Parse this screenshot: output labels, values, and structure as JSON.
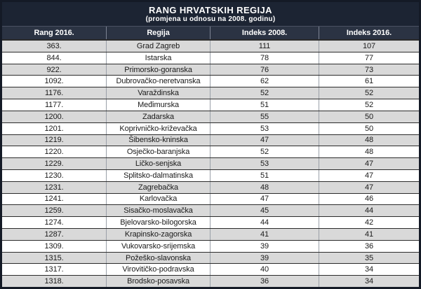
{
  "header": {
    "title": "RANG HRVATSKIH REGIJA",
    "subtitle": "(promjena u odnosu na 2008. godinu)"
  },
  "table": {
    "columns": [
      "Rang 2016.",
      "Regija",
      "Indeks 2008.",
      "Indeks 2016."
    ],
    "rows": [
      {
        "rank": "363.",
        "region": "Grad Zagreb",
        "indeks_2008": "111",
        "indeks_2016": "107"
      },
      {
        "rank": "844.",
        "region": "Istarska",
        "indeks_2008": "78",
        "indeks_2016": "77"
      },
      {
        "rank": "922.",
        "region": "Primorsko-goranska",
        "indeks_2008": "76",
        "indeks_2016": "73"
      },
      {
        "rank": "1092.",
        "region": "Dubrovačko-neretvanska",
        "indeks_2008": "62",
        "indeks_2016": "61"
      },
      {
        "rank": "1176.",
        "region": "Varaždinska",
        "indeks_2008": "52",
        "indeks_2016": "52"
      },
      {
        "rank": "1177.",
        "region": "Međimurska",
        "indeks_2008": "51",
        "indeks_2016": "52"
      },
      {
        "rank": "1200.",
        "region": "Zadarska",
        "indeks_2008": "55",
        "indeks_2016": "50"
      },
      {
        "rank": "1201.",
        "region": "Koprivničko-križevačka",
        "indeks_2008": "53",
        "indeks_2016": "50"
      },
      {
        "rank": "1219.",
        "region": "Šibensko-kninska",
        "indeks_2008": "47",
        "indeks_2016": "48"
      },
      {
        "rank": "1220.",
        "region": "Osječko-baranjska",
        "indeks_2008": "52",
        "indeks_2016": "48"
      },
      {
        "rank": "1229.",
        "region": "Ličko-senjska",
        "indeks_2008": "53",
        "indeks_2016": "47"
      },
      {
        "rank": "1230.",
        "region": "Splitsko-dalmatinska",
        "indeks_2008": "51",
        "indeks_2016": "47"
      },
      {
        "rank": "1231.",
        "region": "Zagrebačka",
        "indeks_2008": "48",
        "indeks_2016": "47"
      },
      {
        "rank": "1241.",
        "region": "Karlovačka",
        "indeks_2008": "47",
        "indeks_2016": "46"
      },
      {
        "rank": "1259.",
        "region": "Sisačko-moslavačka",
        "indeks_2008": "45",
        "indeks_2016": "44"
      },
      {
        "rank": "1274.",
        "region": "Bjelovarsko-bilogorska",
        "indeks_2008": "44",
        "indeks_2016": "42"
      },
      {
        "rank": "1287.",
        "region": "Krapinsko-zagorska",
        "indeks_2008": "41",
        "indeks_2016": "41"
      },
      {
        "rank": "1309.",
        "region": "Vukovarsko-srijemska",
        "indeks_2008": "39",
        "indeks_2016": "36"
      },
      {
        "rank": "1315.",
        "region": "Požeško-slavonska",
        "indeks_2008": "39",
        "indeks_2016": "35"
      },
      {
        "rank": "1317.",
        "region": "Virovitičko-podravska",
        "indeks_2008": "40",
        "indeks_2016": "34"
      },
      {
        "rank": "1318.",
        "region": "Brodsko-posavska",
        "indeks_2008": "36",
        "indeks_2016": "34"
      }
    ]
  },
  "colors": {
    "header_bg": "#1c2433",
    "header_row_bg": "#2b3343",
    "row_shaded_bg": "#d9d9d9",
    "row_plain_bg": "#ffffff",
    "text_dark": "#1a1a1a",
    "text_light": "#ffffff",
    "outer_border": "#141a26"
  }
}
